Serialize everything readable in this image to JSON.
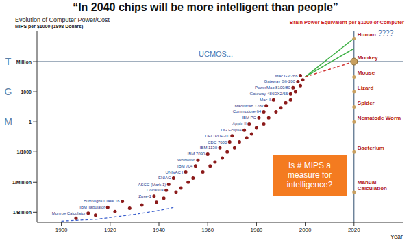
{
  "title": "“In 2040 chips will be more intelligent than people”",
  "chart_data": {
    "type": "scatter",
    "title": "Evolution of Computer Power/Cost",
    "x_label": "Year",
    "y_label": "MIPS per $1000 (1998 Dollars)",
    "log": "y",
    "grid": false,
    "xlim": [
      1890,
      2040
    ],
    "xticks": [
      1900,
      1920,
      1940,
      1960,
      1980,
      2000,
      2020
    ],
    "ylim": [
      1e-10,
      1000000000
    ],
    "yticks": [
      {
        "value": 1e-09,
        "label": "1/Billion"
      },
      {
        "value": 1e-06,
        "label": "1/Million"
      },
      {
        "value": 0.001,
        "label": "1/1000"
      },
      1,
      1000,
      {
        "value": 1000000,
        "label": "Million"
      }
    ],
    "side_marks": [
      {
        "value": 1000000,
        "label": "T"
      },
      {
        "value": 1000,
        "label": "G"
      },
      {
        "value": 1,
        "label": "M"
      }
    ],
    "series": [
      {
        "color": "#8b1a1a",
        "marker": "circle",
        "x": [
          1911,
          1919,
          1925,
          1938,
          1943,
          1944,
          1946,
          1951,
          1955,
          1956,
          1960,
          1965,
          1969,
          1970,
          1975,
          1977,
          1981,
          1983,
          1984,
          1987,
          1994,
          1995,
          1997,
          1998,
          1906,
          1914,
          1922,
          1928,
          1933,
          1939,
          1942,
          1947,
          1949,
          1952,
          1954,
          1958,
          1961,
          1963,
          1966,
          1968,
          1971,
          1973,
          1976,
          1978,
          1980,
          1983,
          1985,
          1988,
          1990,
          1992,
          1994,
          1996,
          1998,
          1999
        ],
        "values": [
          8e-10,
          3e-09,
          1.2e-08,
          4e-08,
          1.5e-07,
          6e-07,
          2.5e-06,
          1e-05,
          4e-05,
          0.00015,
          0.0006,
          0.0025,
          0.01,
          0.04,
          0.15,
          0.6,
          2.5,
          10,
          40,
          150,
          600,
          2500,
          10000,
          40000,
          2.5e-10,
          5e-10,
          1.2e-09,
          2.5e-09,
          5e-09,
          1e-08,
          2.5e-08,
          1e-07,
          2.5e-07,
          1e-06,
          2.5e-06,
          1e-05,
          4e-05,
          0.0001,
          0.00025,
          0.001,
          0.0025,
          0.01,
          0.025,
          0.06,
          0.25,
          0.6,
          2.5,
          10,
          25,
          80,
          150,
          1000,
          4000,
          15000
        ],
        "point_labels": [
          "Monroe Calculator",
          "IBM Tabulator",
          "Burroughs Class 16",
          "Zuse-1",
          "Colossus",
          "ASCC (Mark 1)",
          "ENIAC",
          "UNIVAC I",
          "IBM 704",
          "Whirlwind",
          "IBM 7090",
          "IBM 1130",
          "CDC 7600",
          "DEC PDP-10",
          "DG Eclipse",
          "Apple II",
          "IBM PC",
          "Commodore 64",
          "Macintosh 128k",
          "Mac II",
          "Gateway-486DX2/66",
          "PowerMac 8100/80",
          "Gateway G6-200",
          "Mac G3/266",
          null,
          null,
          null,
          null,
          null,
          null,
          null,
          null,
          null,
          null,
          null,
          null,
          null,
          null,
          null,
          null,
          null,
          null,
          null,
          null,
          null,
          null,
          null,
          null,
          null,
          null,
          null,
          null,
          null,
          null
        ]
      }
    ],
    "trend": {
      "color": "#3a5fcd",
      "line_style": "dashed",
      "x": [
        1900,
        1915,
        1930,
        1940,
        1946
      ],
      "values": [
        1.3e-10,
        2e-10,
        6e-10,
        1.5e-09,
        3e-09
      ]
    },
    "projections": [
      {
        "color": "#3cb043",
        "line_style": "solid",
        "x": [
          2000,
          2020
        ],
        "values": [
          30000,
          200000000
        ]
      },
      {
        "color": "#3cb043",
        "line_style": "solid",
        "x": [
          2000,
          2020
        ],
        "values": [
          30000,
          20000000
        ]
      },
      {
        "color": "#d03030",
        "line_style": "dashed",
        "x": [
          2000,
          2020
        ],
        "values": [
          30000,
          1000000
        ]
      }
    ],
    "reference_lines": {
      "x": 2020,
      "y": 1000000
    },
    "brain_title": "Brain Power Equivalent per $1000 of Computer",
    "brain_equivalents": {
      "labels": [
        "Human",
        "Monkey",
        "Mouse",
        "Lizard",
        "Spider",
        "Nematode Worm",
        "Bacterium",
        "Manual Calculation"
      ],
      "values": [
        200000000,
        1000000,
        30000,
        1000,
        30,
        1,
        0.001,
        1e-07
      ]
    },
    "annotations": {
      "capacity": "UCMOS...",
      "human_note": "????",
      "question": "Is # MIPS a measure for intelligence?"
    }
  }
}
